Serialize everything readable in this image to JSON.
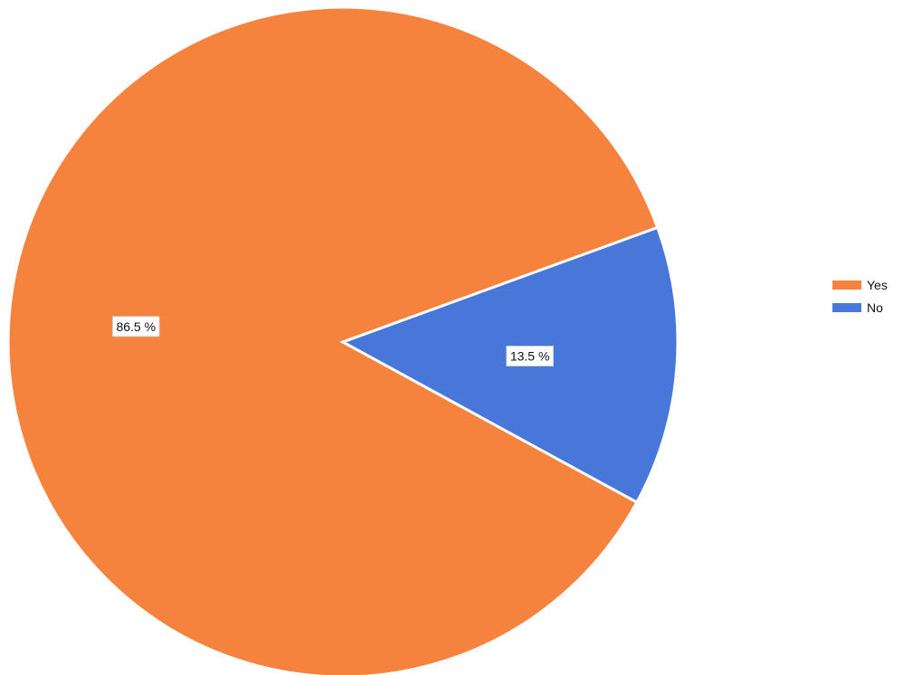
{
  "chart_data": {
    "type": "pie",
    "slices": [
      {
        "label": "Yes",
        "value": 86.5,
        "display": "86.5 %",
        "color": "#F5833E"
      },
      {
        "label": "No",
        "value": 13.5,
        "display": "13.5 %",
        "color": "#4777D8"
      }
    ],
    "legend": {
      "placement": "right",
      "items": [
        {
          "label": "Yes",
          "color": "#F5833E"
        },
        {
          "label": "No",
          "color": "#4777D8"
        }
      ]
    },
    "start_angle_deg": -20,
    "direction": "clockwise"
  }
}
